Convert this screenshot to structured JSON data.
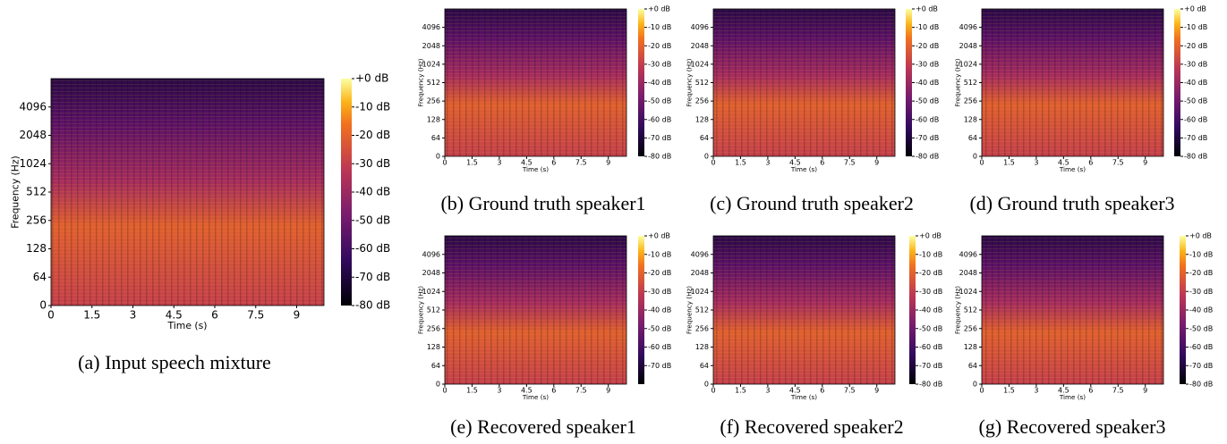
{
  "chart_data": [
    {
      "type": "spectrogram",
      "caption": "(a) Input speech mixture",
      "xlabel": "Time (s)",
      "ylabel": "Frequency (Hz)",
      "xlim": [
        0,
        10
      ],
      "xticks": [
        0,
        1.5,
        3,
        4.5,
        6,
        7.5,
        9
      ],
      "ylim": [
        0,
        8192
      ],
      "yticks": [
        0,
        64,
        128,
        256,
        512,
        1024,
        2048,
        4096
      ],
      "clim": [
        -80,
        0
      ],
      "colorbar_ticks": [
        {
          "value": 0,
          "label": "+0 dB"
        },
        {
          "value": -10,
          "label": "-10 dB"
        },
        {
          "value": -20,
          "label": "-20 dB"
        },
        {
          "value": -30,
          "label": "-30 dB"
        },
        {
          "value": -40,
          "label": "-40 dB"
        },
        {
          "value": -50,
          "label": "-50 dB"
        },
        {
          "value": -60,
          "label": "-60 dB"
        },
        {
          "value": -70,
          "label": "-70 dB"
        },
        {
          "value": -80,
          "label": "-80 dB"
        }
      ]
    },
    {
      "type": "spectrogram",
      "caption": "(b) Ground truth speaker1",
      "xlabel": "Time (s)",
      "ylabel": "Frequency (Hz)",
      "xlim": [
        0,
        10
      ],
      "xticks": [
        0,
        1.5,
        3,
        4.5,
        6,
        7.5,
        9
      ],
      "ylim": [
        0,
        8192
      ],
      "yticks": [
        0,
        64,
        128,
        256,
        512,
        1024,
        2048,
        4096
      ],
      "clim": [
        -80,
        0
      ],
      "colorbar_ticks": [
        {
          "value": 0,
          "label": "+0 dB"
        },
        {
          "value": -10,
          "label": "-10 dB"
        },
        {
          "value": -20,
          "label": "-20 dB"
        },
        {
          "value": -30,
          "label": "-30 dB"
        },
        {
          "value": -40,
          "label": "-40 dB"
        },
        {
          "value": -50,
          "label": "-50 dB"
        },
        {
          "value": -60,
          "label": "-60 dB"
        },
        {
          "value": -70,
          "label": "-70 dB"
        },
        {
          "value": -80,
          "label": "-80 dB"
        }
      ]
    },
    {
      "type": "spectrogram",
      "caption": "(c) Ground truth speaker2",
      "xlabel": "Time (s)",
      "ylabel": "Frequency (Hz)",
      "xlim": [
        0,
        10
      ],
      "xticks": [
        0,
        1.5,
        3,
        4.5,
        6,
        7.5,
        9
      ],
      "ylim": [
        0,
        8192
      ],
      "yticks": [
        0,
        64,
        128,
        256,
        512,
        1024,
        2048,
        4096
      ],
      "clim": [
        -80,
        0
      ],
      "colorbar_ticks": [
        {
          "value": 0,
          "label": "+0 dB"
        },
        {
          "value": -10,
          "label": "-10 dB"
        },
        {
          "value": -20,
          "label": "-20 dB"
        },
        {
          "value": -30,
          "label": "-30 dB"
        },
        {
          "value": -40,
          "label": "-40 dB"
        },
        {
          "value": -50,
          "label": "-50 dB"
        },
        {
          "value": -60,
          "label": "-60 dB"
        },
        {
          "value": -70,
          "label": "-70 dB"
        },
        {
          "value": -80,
          "label": "-80 dB"
        }
      ]
    },
    {
      "type": "spectrogram",
      "caption": "(d) Ground truth speaker3",
      "xlabel": "Time (s)",
      "ylabel": "Frequency (Hz)",
      "xlim": [
        0,
        10
      ],
      "xticks": [
        0,
        1.5,
        3,
        4.5,
        6,
        7.5,
        9
      ],
      "ylim": [
        0,
        8192
      ],
      "yticks": [
        0,
        64,
        128,
        256,
        512,
        1024,
        2048,
        4096
      ],
      "clim": [
        -80,
        0
      ],
      "colorbar_ticks": [
        {
          "value": 0,
          "label": "+0 dB"
        },
        {
          "value": -10,
          "label": "-10 dB"
        },
        {
          "value": -20,
          "label": "-20 dB"
        },
        {
          "value": -30,
          "label": "-30 dB"
        },
        {
          "value": -40,
          "label": "-40 dB"
        },
        {
          "value": -50,
          "label": "-50 dB"
        },
        {
          "value": -60,
          "label": "-60 dB"
        },
        {
          "value": -70,
          "label": "-70 dB"
        },
        {
          "value": -80,
          "label": "-80 dB"
        }
      ]
    },
    {
      "type": "spectrogram",
      "caption": "(e) Recovered speaker1",
      "xlabel": "Time (s)",
      "ylabel": "Frequency (Hz)",
      "xlim": [
        0,
        10
      ],
      "xticks": [
        0,
        1.5,
        3,
        4.5,
        6,
        7.5,
        9
      ],
      "ylim": [
        0,
        8192
      ],
      "yticks": [
        0,
        64,
        128,
        256,
        512,
        1024,
        2048,
        4096
      ],
      "clim": [
        -80,
        0
      ],
      "colorbar_ticks": [
        {
          "value": 0,
          "label": "+0 dB"
        },
        {
          "value": -10,
          "label": "-10 dB"
        },
        {
          "value": -20,
          "label": "-20 dB"
        },
        {
          "value": -30,
          "label": "-30 dB"
        },
        {
          "value": -40,
          "label": "-40 dB"
        },
        {
          "value": -50,
          "label": "-50 dB"
        },
        {
          "value": -60,
          "label": "-60 dB"
        },
        {
          "value": -70,
          "label": "-70 dB"
        }
      ]
    },
    {
      "type": "spectrogram",
      "caption": "(f) Recovered speaker2",
      "xlabel": "Time (s)",
      "ylabel": "Frequency (Hz)",
      "xlim": [
        0,
        10
      ],
      "xticks": [
        0,
        1.5,
        3,
        4.5,
        6,
        7.5,
        9
      ],
      "ylim": [
        0,
        8192
      ],
      "yticks": [
        0,
        64,
        128,
        256,
        512,
        1024,
        2048,
        4096
      ],
      "clim": [
        -80,
        0
      ],
      "colorbar_ticks": [
        {
          "value": 0,
          "label": "+0 dB"
        },
        {
          "value": -10,
          "label": "-10 dB"
        },
        {
          "value": -20,
          "label": "-20 dB"
        },
        {
          "value": -30,
          "label": "-30 dB"
        },
        {
          "value": -40,
          "label": "-40 dB"
        },
        {
          "value": -50,
          "label": "-50 dB"
        },
        {
          "value": -60,
          "label": "-60 dB"
        },
        {
          "value": -70,
          "label": "-70 dB"
        },
        {
          "value": -80,
          "label": "-80 dB"
        }
      ]
    },
    {
      "type": "spectrogram",
      "caption": "(g) Recovered speaker3",
      "xlabel": "Time (s)",
      "ylabel": "Frequency (Hz)",
      "xlim": [
        0,
        10
      ],
      "xticks": [
        0,
        1.5,
        3,
        4.5,
        6,
        7.5,
        9
      ],
      "ylim": [
        0,
        8192
      ],
      "yticks": [
        0,
        64,
        128,
        256,
        512,
        1024,
        2048,
        4096
      ],
      "clim": [
        -80,
        0
      ],
      "colorbar_ticks": [
        {
          "value": 0,
          "label": "+0 dB"
        },
        {
          "value": -10,
          "label": "-10 dB"
        },
        {
          "value": -20,
          "label": "-20 dB"
        },
        {
          "value": -30,
          "label": "-30 dB"
        },
        {
          "value": -40,
          "label": "-40 dB"
        },
        {
          "value": -50,
          "label": "-50 dB"
        },
        {
          "value": -60,
          "label": "-60 dB"
        },
        {
          "value": -70,
          "label": "-70 dB"
        },
        {
          "value": -80,
          "label": "-80 dB"
        }
      ]
    }
  ]
}
